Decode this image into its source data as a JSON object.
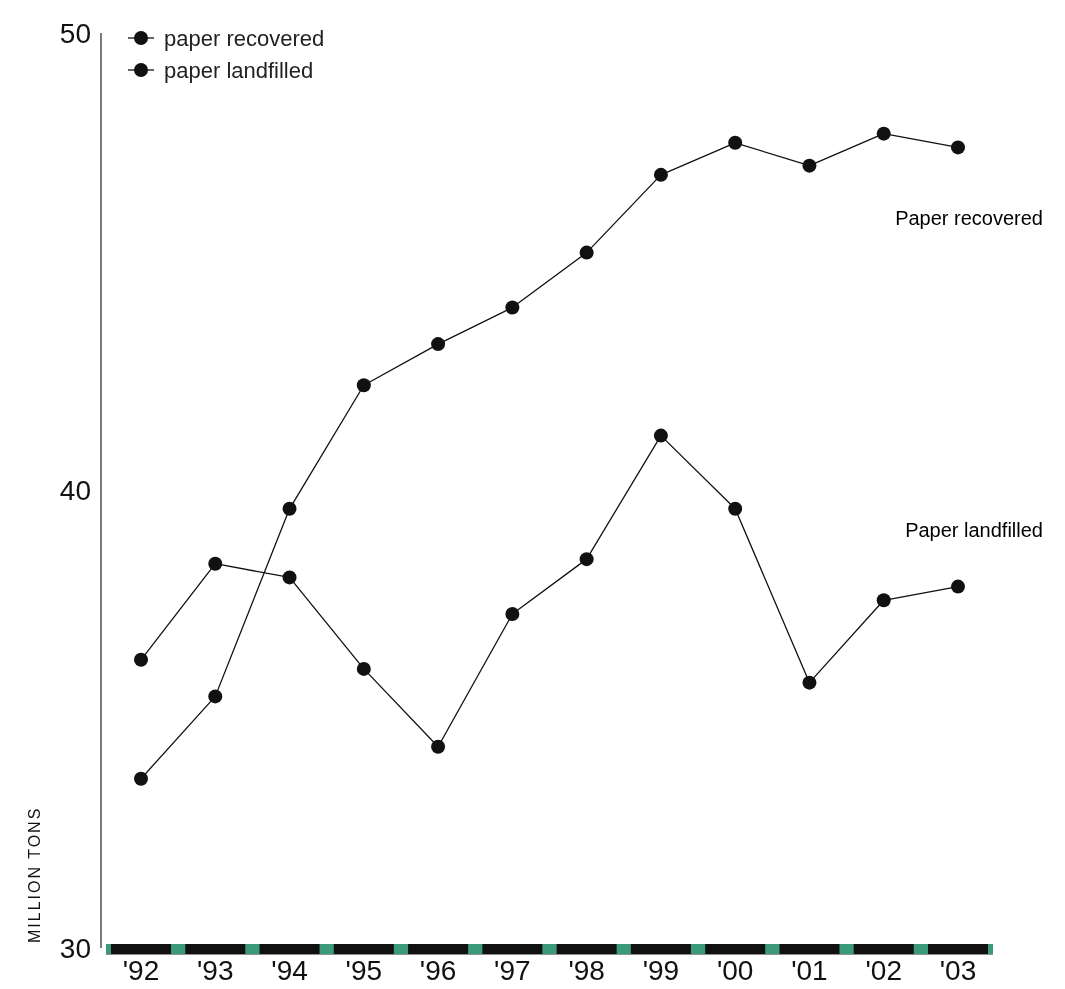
{
  "chart_data": {
    "type": "line",
    "ylabel": "MILLION TONS",
    "categories": [
      "'92",
      "'93",
      "'94",
      "'95",
      "'96",
      "'97",
      "'98",
      "'99",
      "'00",
      "'01",
      "'02",
      "'03"
    ],
    "series": [
      {
        "name": "paper recovered",
        "color": "#111111",
        "values": [
          33.7,
          35.5,
          39.6,
          42.3,
          43.2,
          44.0,
          45.2,
          46.9,
          47.6,
          47.1,
          47.8,
          47.5
        ]
      },
      {
        "name": "paper landfilled",
        "color": "#111111",
        "values": [
          36.3,
          38.4,
          38.1,
          36.1,
          34.4,
          37.3,
          38.5,
          41.2,
          39.6,
          35.8,
          37.6,
          37.9
        ]
      }
    ],
    "ylim": [
      30,
      50
    ],
    "yticks": [
      30,
      40,
      50
    ],
    "grid": false,
    "legend": "top left",
    "marker": "circle",
    "line_style": "solid",
    "annotations": [
      "Paper recovered",
      "Paper landfilled"
    ]
  }
}
